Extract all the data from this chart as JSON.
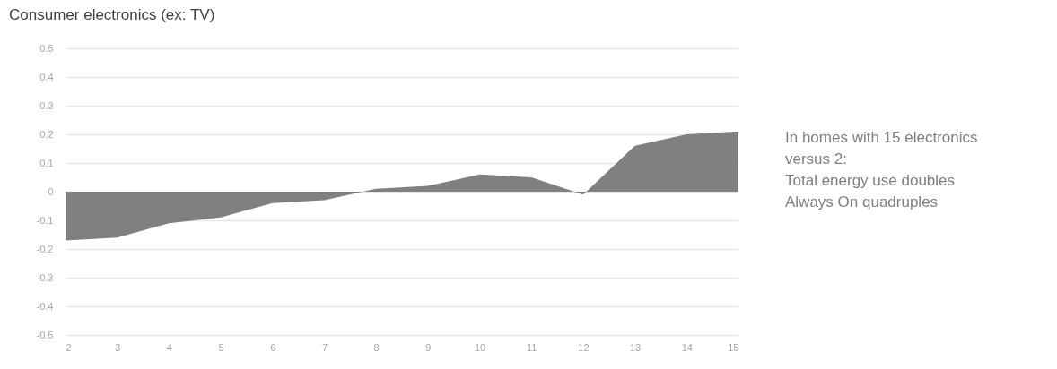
{
  "chart_data": {
    "type": "area",
    "title": "Consumer electronics (ex: TV)",
    "categories": [
      "2",
      "3",
      "4",
      "5",
      "6",
      "7",
      "8",
      "9",
      "10",
      "11",
      "12",
      "13",
      "14",
      "15"
    ],
    "series": [
      {
        "color": "#808080",
        "values": [
          -0.17,
          -0.16,
          -0.11,
          -0.09,
          -0.04,
          -0.03,
          0.01,
          0.02,
          0.06,
          0.05,
          -0.01,
          0.16,
          0.2,
          0.21
        ]
      }
    ],
    "ylim": [
      -0.5,
      0.5
    ],
    "yticks": [
      -0.5,
      -0.4,
      -0.3,
      -0.2,
      -0.1,
      0,
      0.1,
      0.2,
      0.3,
      0.4,
      0.5
    ],
    "grid": "y",
    "annotations": [
      "In homes with 15 electronics\nversus 2:\nTotal energy use doubles\nAlways On quadruples"
    ]
  }
}
